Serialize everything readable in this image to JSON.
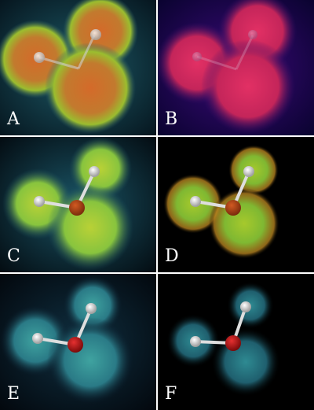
{
  "figure": {
    "panels": [
      {
        "label": "A",
        "style": "rainbow-volume"
      },
      {
        "label": "B",
        "style": "magenta-volume"
      },
      {
        "label": "C",
        "style": "green-volume"
      },
      {
        "label": "D",
        "style": "green-volume-black-background"
      },
      {
        "label": "E",
        "style": "cyan-volume"
      },
      {
        "label": "F",
        "style": "cyan-volume-black-background"
      }
    ],
    "colors": {
      "oxygen_atom": "#c81e1e",
      "hydrogen_atom": "#f2f2f2",
      "bond": "#d0d0d0",
      "separator": "#ffffff"
    }
  }
}
